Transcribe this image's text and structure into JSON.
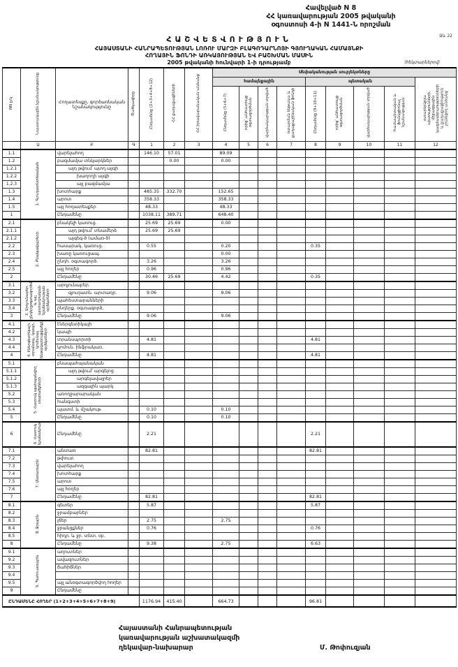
{
  "header": {
    "appendix_line1": "Հավելված N 8",
    "appendix_line2": "ՀՀ կառավարության 2005 թվականի",
    "appendix_line3": "օգոստոսի 4-ի N 1441-Ն որոշման",
    "report_title": "ՀԱՇՎԵՏՎՈՒԹՅՈՒՆ",
    "form_no": "Ձև 22",
    "subtitle1": "ՀԱՅԱՍՏԱՆԻ ՀԱՆՐԱՊԵՏՈՒԹՅԱՆ ԼՈՌՈՒ ՄԱՐԶԻ ԲԼԱԳՈԴԱՐՆՈՅԻ ԳՅՈՒՂԱԿԱՆ ՀԱՄԱՅՆՔԻ",
    "subtitle2": "ՀՈՂԱՅԻՆ ՖՈՆԴԻ ԱՌԿԱՅՈՒԹՅԱՆ ԵՎ ԲԱՇԽՄԱՆ ՄԱՍԻՆ",
    "as_of": "2005 թվականի հունվարի 1-ի դրությամբ",
    "units": "(հեկտարներով)"
  },
  "table": {
    "ownership_header": "Սեփականության սուբյեկտները",
    "group_communal": "համայնքային",
    "group_state": "պետական",
    "columns": {
      "nn": "NN ը/կ",
      "purpose": "Նպատակային նշանակությունը",
      "land": "Հողատեսքը, գործառնական նշանակությունը",
      "code": "Ծածկագիրը",
      "c1": "Ընդամենը (2+3+4+8+12)",
      "c2": "ՀՀ քաղաքացիների",
      "c3": "ՀՀ իրավաբանական անձանց",
      "c4": "Ընդամենը (5+6+7)",
      "c5": "որից՝ անհատույց օգտագործման",
      "c6": "վարձակալության տրված",
      "c7": "օտարման ենթակա և քաղաքաշինական ֆոնդի",
      "c8": "Ընդամենը (9+10+11)",
      "c9": "որից՝ անհատույց օգտագործման",
      "c10": "վարձակալության տրված",
      "c11": "համապետական և ֆունկցիոնալ նշանակության",
      "c12": "օտարերկրյա պետությունների, միջազգային կազմակերպությունների և քաղաքացիություն չունեցող անձանց"
    },
    "col_numbers": [
      "Ա",
      "Բ",
      "Գ",
      "1",
      "2",
      "3",
      "4",
      "5",
      "6",
      "7",
      "8",
      "9",
      "10",
      "11",
      "12"
    ],
    "sections": [
      {
        "title": "1. Գյուղատնտեսական",
        "rows": [
          {
            "num": "1.1",
            "label": "վարելահող",
            "v": {
              "1": "146.10",
              "2": "57.01",
              "4": "89.09"
            }
          },
          {
            "num": "1.2",
            "label": "բազմամյա տնկարկներ",
            "v": {
              "2": "0.00",
              "4": "0.00"
            }
          },
          {
            "num": "1.2.1",
            "label": "այդ թվում՝ պտղ.այգի",
            "indent": 1
          },
          {
            "num": "1.2.2",
            "label": "խաղողի այգի",
            "indent": 2
          },
          {
            "num": "1.2.3",
            "label": "այլ բազմամյա",
            "indent": 2
          },
          {
            "num": "1.3",
            "label": "խոտհարք",
            "v": {
              "1": "485.35",
              "2": "332.70",
              "4": "152.65"
            }
          },
          {
            "num": "1.4",
            "label": "արոտ",
            "v": {
              "1": "358.33",
              "4": "358.33"
            }
          },
          {
            "num": "1.5",
            "label": "այլ հողատեսքեր",
            "v": {
              "1": "48.33",
              "4": "48.33"
            }
          },
          {
            "num": "1",
            "label": "Ընդամենը",
            "total": true,
            "v": {
              "1": "1038.11",
              "2": "389.71",
              "4": "648.40"
            }
          }
        ]
      },
      {
        "title": "2. Բնակավայրերի",
        "rows": [
          {
            "num": "2.1",
            "label": "բնակելի կառուց.",
            "v": {
              "1": "25.69",
              "2": "25.69",
              "4": "0.00"
            }
          },
          {
            "num": "2.1.1",
            "label": "այդ թվում՝ տնամերձ",
            "indent": 1,
            "v": {
              "1": "25.69",
              "2": "25.69"
            }
          },
          {
            "num": "2.1.2",
            "label": "այգեգ-ծ (ամառ-ծ)",
            "indent": 1
          },
          {
            "num": "2.2",
            "label": "հասարակ. կառուց.",
            "v": {
              "1": "0.55",
              "4": "0.20",
              "8": "0.35"
            }
          },
          {
            "num": "2.3",
            "label": "խառը կառուցապ.",
            "v": {
              "4": "0.00"
            }
          },
          {
            "num": "2.4",
            "label": "ընդհ. օգտագործ.",
            "v": {
              "1": "3.26",
              "4": "3.26"
            }
          },
          {
            "num": "2.5",
            "label": "այլ հողեր",
            "v": {
              "1": "0.96",
              "4": "0.96"
            }
          },
          {
            "num": "2",
            "label": "Ընդամենը",
            "total": true,
            "v": {
              "1": "30.46",
              "2": "25.69",
              "4": "4.42",
              "8": "0.35"
            }
          }
        ]
      },
      {
        "title": "3. Արդյունաբեր. ընդերքօգտագործման և այլ արտադրական նշանակության օբյեկտների",
        "rows": [
          {
            "num": "3.1",
            "label": "արդյունաբեր."
          },
          {
            "num": "3.2",
            "label": "գյուղատն. արտադր.",
            "indent": 1,
            "v": {
              "1": "9.06",
              "4": "9.06"
            }
          },
          {
            "num": "3.3",
            "label": "պահեստարանների"
          },
          {
            "num": "3.4",
            "label": "ընդերք. օգտագործ."
          },
          {
            "num": "3",
            "label": "Ընդամենը",
            "total": true,
            "v": {
              "1": "9.06",
              "4": "9.06"
            }
          }
        ]
      },
      {
        "title": "4. Էներգետիկայի, տրանսպ., կապի, կոմունալ ենթակառուցվածքների օբյեկտների",
        "rows": [
          {
            "num": "4.1",
            "label": "էներգետիկայի"
          },
          {
            "num": "4.2",
            "label": "կապի"
          },
          {
            "num": "4.3",
            "label": "տրանսպորտի",
            "v": {
              "1": "4.81",
              "8": "4.81"
            }
          },
          {
            "num": "4.4",
            "label": "կոմուն. ինֆրակառ."
          },
          {
            "num": "4",
            "label": "Ընդամենը",
            "total": true,
            "v": {
              "1": "4.81",
              "8": "4.81"
            }
          }
        ]
      },
      {
        "title": "5. Հատուկ պահպանվող տարածքների",
        "rows": [
          {
            "num": "5.1",
            "label": "բնապահպանական"
          },
          {
            "num": "5.1.1",
            "label": "այդ թվում՝ արգելոց",
            "indent": 1
          },
          {
            "num": "5.1.2",
            "label": "արգելավայրեր",
            "indent": 2
          },
          {
            "num": "5.1.3",
            "label": "ազգային պարկ",
            "indent": 2
          },
          {
            "num": "5.2",
            "label": "առողջարարական"
          },
          {
            "num": "5.3",
            "label": "հանգստի"
          },
          {
            "num": "5.4",
            "label": "պատմ. և մշակութ.",
            "v": {
              "1": "0.10",
              "4": "0.10"
            }
          },
          {
            "num": "5",
            "label": "Ընդամենը",
            "total": true,
            "v": {
              "1": "0.10",
              "4": "0.10"
            }
          }
        ]
      },
      {
        "title": "6. Հատուկ նշանակության",
        "tall": true,
        "rows": [
          {
            "num": "6",
            "label": "Ընդամենը",
            "total": true,
            "v": {
              "1": "2.21",
              "8": "2.21"
            }
          }
        ]
      },
      {
        "title": "7. Անտառային",
        "rows": [
          {
            "num": "7.1",
            "label": "անտառ",
            "v": {
              "1": "82.81",
              "8": "82.81"
            }
          },
          {
            "num": "7.2",
            "label": "թփուտ"
          },
          {
            "num": "7.3",
            "label": "վարելահող"
          },
          {
            "num": "7.4",
            "label": "խոտհարք"
          },
          {
            "num": "7.5",
            "label": "արոտ"
          },
          {
            "num": "7.6",
            "label": "այլ հողեր"
          },
          {
            "num": "7",
            "label": "Ընդամենը",
            "total": true,
            "v": {
              "1": "82.81",
              "8": "82.81"
            }
          }
        ]
      },
      {
        "title": "8. Ջրային",
        "rows": [
          {
            "num": "8.1",
            "label": "գետեր",
            "v": {
              "1": "5.87",
              "8": "5.87"
            }
          },
          {
            "num": "8.2",
            "label": "ջրամբարներ"
          },
          {
            "num": "8.3",
            "label": "լճեր",
            "v": {
              "1": "2.75",
              "4": "2.75"
            }
          },
          {
            "num": "8.4",
            "label": "ջրանցքներ",
            "v": {
              "1": "0.76",
              "8": "0.76"
            }
          },
          {
            "num": "8.5",
            "label": "հիդր. և ջր. տնտ. օբ."
          },
          {
            "num": "8",
            "label": "Ընդամենը",
            "total": true,
            "v": {
              "1": "9.38",
              "4": "2.75",
              "8": "6.63"
            }
          }
        ]
      },
      {
        "title": "9. Պահուստային",
        "rows": [
          {
            "num": "9.1",
            "label": "աղուտներ"
          },
          {
            "num": "9.2",
            "label": "ավազուտներ"
          },
          {
            "num": "9.3",
            "label": "ճահիճներ"
          },
          {
            "num": "9.4",
            "label": ""
          },
          {
            "num": "9.5",
            "label": "այլ անօգտագործվող հողեր"
          },
          {
            "num": "9",
            "label": "Ընդամենը",
            "total": true
          }
        ]
      }
    ],
    "grand_total": {
      "label": "ԸՆԴԱՄԵՆԸ ՀՈՂԵՐ (1+2+3+4+5+6+7+8+9)",
      "v": {
        "1": "1176.94",
        "2": "415.40",
        "4": "664.73",
        "8": "96.81"
      }
    }
  },
  "footer": {
    "left_line1": "Հայաստանի Հանրապետության",
    "left_line2": "կառավարության աշխատակազմի",
    "left_line3": "ղեկավար-նախարար",
    "signature": "Մ. Թոփուզյան"
  }
}
